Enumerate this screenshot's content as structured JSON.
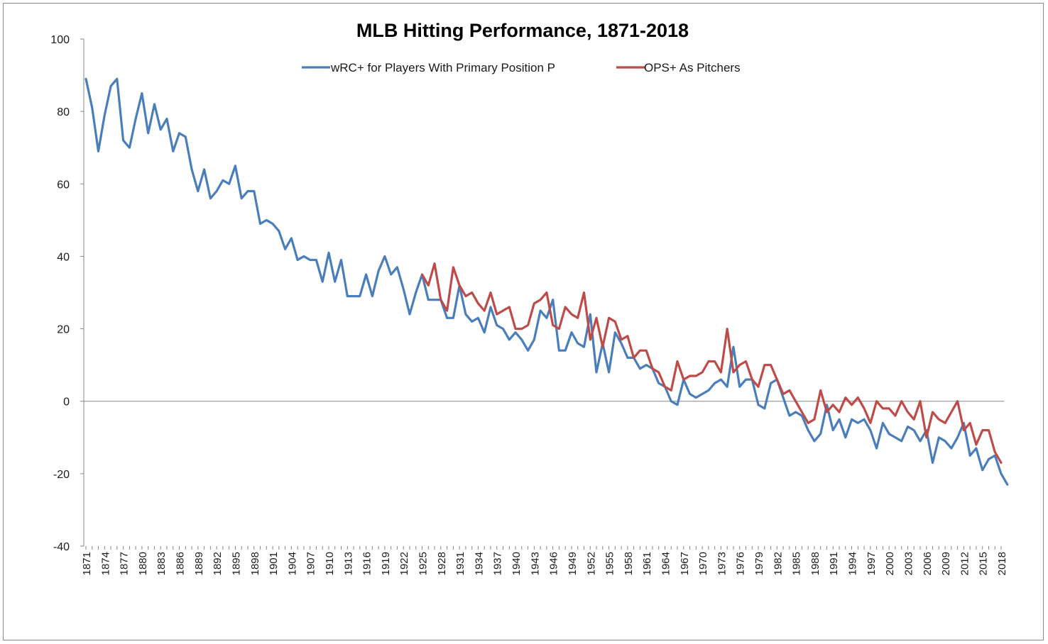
{
  "chart_data": {
    "type": "line",
    "title": "MLB Hitting Performance, 1871-2018",
    "xlabel": "",
    "ylabel": "",
    "xlim": [
      1871,
      2018
    ],
    "ylim": [
      -40,
      100
    ],
    "y_ticks": [
      100,
      80,
      60,
      40,
      20,
      0,
      -20,
      -40
    ],
    "x_tick_labels": [
      "1871",
      "1874",
      "1877",
      "1880",
      "1883",
      "1886",
      "1889",
      "1892",
      "1895",
      "1898",
      "1901",
      "1904",
      "1907",
      "1910",
      "1913",
      "1916",
      "1919",
      "1922",
      "1925",
      "1928",
      "1931",
      "1934",
      "1937",
      "1940",
      "1943",
      "1946",
      "1949",
      "1952",
      "1955",
      "1958",
      "1961",
      "1964",
      "1967",
      "1970",
      "1973",
      "1976",
      "1979",
      "1982",
      "1985",
      "1988",
      "1991",
      "1994",
      "1997",
      "2000",
      "2003",
      "2006",
      "2009",
      "2012",
      "2015",
      "2018"
    ],
    "grid": false,
    "legend_position": "top-center",
    "series": [
      {
        "name": "wRC+ for Players With Primary Position P",
        "color": "#4a7ebb",
        "x_start": 1871,
        "values": [
          89,
          81,
          69,
          79,
          87,
          89,
          72,
          70,
          78,
          85,
          74,
          82,
          75,
          78,
          69,
          74,
          73,
          64,
          58,
          64,
          56,
          58,
          61,
          60,
          65,
          56,
          58,
          58,
          49,
          50,
          49,
          47,
          42,
          45,
          39,
          40,
          39,
          39,
          33,
          41,
          33,
          39,
          29,
          29,
          29,
          35,
          29,
          36,
          40,
          35,
          37,
          31,
          24,
          30,
          35,
          28,
          28,
          28,
          23,
          23,
          32,
          24,
          22,
          23,
          19,
          26,
          21,
          20,
          17,
          19,
          17,
          14,
          17,
          25,
          23,
          28,
          14,
          14,
          19,
          16,
          15,
          24,
          8,
          16,
          8,
          19,
          16,
          12,
          12,
          9,
          10,
          9,
          5,
          4,
          0,
          -1,
          6,
          2,
          1,
          2,
          3,
          5,
          6,
          4,
          15,
          4,
          6,
          6,
          -1,
          -2,
          5,
          6,
          1,
          -4,
          -3,
          -4,
          -8,
          -11,
          -9,
          -1,
          -8,
          -5,
          -10,
          -5,
          -6,
          -5,
          -8,
          -13,
          -6,
          -9,
          -10,
          -11,
          -7,
          -8,
          -11,
          -8,
          -17,
          -10,
          -11,
          -13,
          -10,
          -6,
          -15,
          -13,
          -19,
          -16,
          -15,
          -20,
          -23
        ]
      },
      {
        "name": "OPS+ As Pitchers",
        "color": "#be4b48",
        "x_start": 1925,
        "values": [
          35,
          32,
          38,
          28,
          25,
          37,
          32,
          29,
          30,
          27,
          25,
          30,
          24,
          25,
          26,
          20,
          20,
          21,
          27,
          28,
          30,
          21,
          20,
          26,
          24,
          23,
          30,
          17,
          23,
          15,
          23,
          22,
          17,
          18,
          12,
          14,
          14,
          9,
          8,
          4,
          3,
          11,
          6,
          7,
          7,
          8,
          11,
          11,
          8,
          20,
          8,
          10,
          11,
          6,
          4,
          10,
          10,
          6,
          2,
          3,
          0,
          -3,
          -6,
          -5,
          3,
          -3,
          -1,
          -3,
          1,
          -1,
          1,
          -2,
          -6,
          0,
          -2,
          -2,
          -4,
          0,
          -3,
          -5,
          0,
          -10,
          -3,
          -5,
          -6,
          -3,
          0,
          -8,
          -6,
          -12,
          -8,
          -8,
          -14,
          -17
        ]
      }
    ]
  }
}
